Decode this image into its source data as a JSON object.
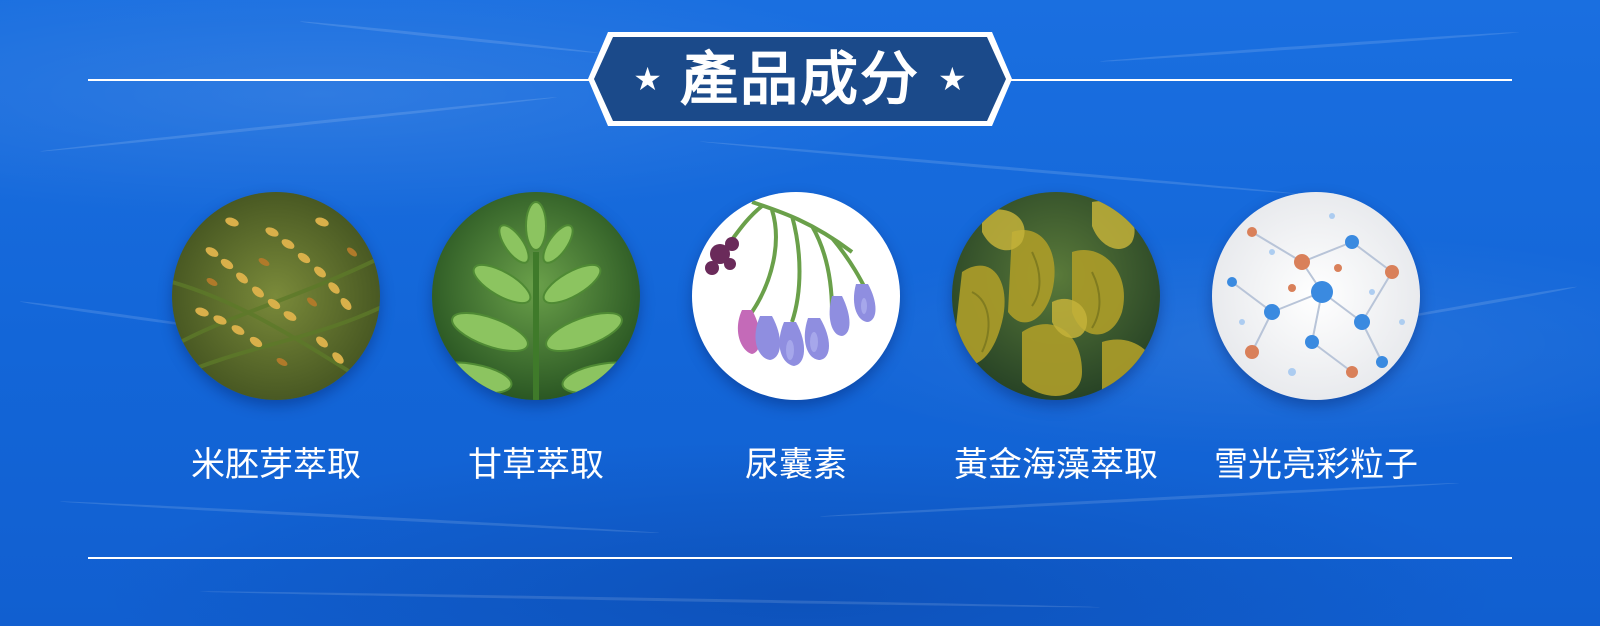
{
  "title": {
    "text": "產品成分",
    "left_star_icon": "star-icon",
    "right_star_icon": "star-icon"
  },
  "ingredients": [
    {
      "name": "米胚芽萃取",
      "image": "rice-grain-illustration"
    },
    {
      "name": "甘草萃取",
      "image": "licorice-leaf-illustration"
    },
    {
      "name": "尿囊素",
      "image": "comfrey-flower-illustration"
    },
    {
      "name": "黃金海藻萃取",
      "image": "seaweed-illustration"
    },
    {
      "name": "雪光亮彩粒子",
      "image": "molecule-illustration"
    }
  ],
  "colors": {
    "background": "#1569dc",
    "badge_fill": "#1b4a8a",
    "rule": "#ffffff",
    "text": "#ffffff"
  }
}
